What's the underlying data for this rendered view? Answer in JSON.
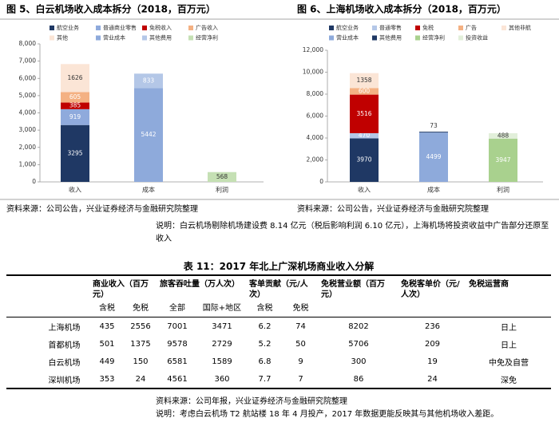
{
  "chart_data": [
    {
      "type": "stacked_bar",
      "title": "图 5、白云机场收入成本拆分（2018，百万元）",
      "categories": [
        "收入",
        "成本",
        "利润"
      ],
      "series": [
        {
          "name": "航空业务",
          "color": "#1f3864",
          "values": [
            3295,
            null,
            null
          ]
        },
        {
          "name": "普通商业零售",
          "color": "#8faadc",
          "values": [
            919,
            null,
            null
          ]
        },
        {
          "name": "免税收入",
          "color": "#c00000",
          "values": [
            385,
            null,
            null
          ]
        },
        {
          "name": "广告收入",
          "color": "#f4b183",
          "values": [
            605,
            null,
            null
          ]
        },
        {
          "name": "其他",
          "color": "#fbe5d6",
          "values": [
            1626,
            null,
            null
          ]
        },
        {
          "name": "营业成本",
          "color": "#8eaadb",
          "values": [
            null,
            5442,
            null
          ]
        },
        {
          "name": "其他费用",
          "color": "#b4c7e7",
          "values": [
            null,
            833,
            null
          ]
        },
        {
          "name": "经营净利",
          "color": "#c5e0b4",
          "values": [
            null,
            null,
            568
          ]
        }
      ],
      "ylim": [
        0,
        8000
      ],
      "yticks": [
        0,
        {
          "value": 1000,
          "label": "1,000"
        },
        {
          "value": 2000,
          "label": "2,000"
        },
        {
          "value": 3000,
          "label": "3,000"
        },
        {
          "value": 4000,
          "label": "4,000"
        },
        {
          "value": 5000,
          "label": "5,000"
        },
        {
          "value": 6000,
          "label": "6,000"
        },
        {
          "value": 7000,
          "label": "7,000"
        },
        {
          "value": 8000,
          "label": "8,000"
        }
      ],
      "source": "资料来源：公司公告，兴业证券经济与金融研究院整理"
    },
    {
      "type": "stacked_bar",
      "title": "图 6、上海机场收入成本拆分（2018，百万元）",
      "categories": [
        "收入",
        "成本",
        "利润"
      ],
      "series": [
        {
          "name": "航空业务",
          "color": "#1f3864",
          "values": [
            3970,
            null,
            null
          ]
        },
        {
          "name": "普通零售",
          "color": "#b4c7e7",
          "values": [
            470,
            null,
            null
          ]
        },
        {
          "name": "免税",
          "color": "#c00000",
          "values": [
            3516,
            null,
            null
          ]
        },
        {
          "name": "广告",
          "color": "#f4b183",
          "values": [
            600,
            null,
            null
          ]
        },
        {
          "name": "其他非航",
          "color": "#fbe5d6",
          "values": [
            1358,
            null,
            null
          ]
        },
        {
          "name": "营业成本",
          "color": "#8eaadb",
          "values": [
            null,
            4499,
            null
          ]
        },
        {
          "name": "其他费用",
          "color": "#1f3864",
          "values": [
            null,
            73,
            null
          ]
        },
        {
          "name": "经营净利",
          "color": "#a9d18e",
          "values": [
            null,
            null,
            3947
          ]
        },
        {
          "name": "投资收益",
          "color": "#e2efda",
          "values": [
            null,
            null,
            488
          ]
        }
      ],
      "ylim": [
        0,
        12000
      ],
      "yticks": [
        0,
        {
          "value": 2000,
          "label": "2,000"
        },
        {
          "value": 4000,
          "label": "4,000"
        },
        {
          "value": 6000,
          "label": "6,000"
        },
        {
          "value": 8000,
          "label": "8,000"
        },
        {
          "value": 10000,
          "label": "10,000"
        },
        {
          "value": 12000,
          "label": "12,000"
        }
      ],
      "source": "资料来源：公司公告，兴业证券经济与金融研究院整理"
    }
  ],
  "document": {
    "note": "说明：白云机场剔除机场建设费 8.14 亿元（税后影响利润 6.10 亿元），上海机场将投资收益中广告部分还原至收入",
    "table": {
      "title": "表 11：2017 年北上广深机场商业收入分解",
      "columns": [
        {
          "label": "商业收入（百万元）",
          "sub": [
            "含税",
            "免税"
          ]
        },
        {
          "label": "旅客吞吐量（万人次）",
          "sub": [
            "全部",
            "国际+地区"
          ]
        },
        {
          "label": "客单贡献（元/人次）",
          "sub": [
            "含税",
            "免税"
          ]
        },
        {
          "label": "免税营业额（百万元）"
        },
        {
          "label": "免税客单价（元/人次）"
        },
        {
          "label": "免税运营商"
        }
      ],
      "rows": [
        {
          "name": "上海机场",
          "cells": [
            435,
            2556,
            7001,
            3471,
            6.2,
            74,
            8202,
            236,
            "日上"
          ]
        },
        {
          "name": "首都机场",
          "cells": [
            501,
            1375,
            9578,
            2729,
            5.2,
            50,
            5706,
            209,
            "日上"
          ]
        },
        {
          "name": "白云机场",
          "cells": [
            449,
            150,
            6581,
            1589,
            6.8,
            9,
            300,
            19,
            "中免及自营"
          ]
        },
        {
          "name": "深圳机场",
          "cells": [
            353,
            24,
            4561,
            360,
            7.7,
            7,
            86,
            24,
            "深免"
          ]
        }
      ],
      "source": "资料来源：公司年报，兴业证券经济与金融研究院整理",
      "note": "说明：考虑白云机场 T2 航站楼 18 年 4 月投产，2017 年数据更能反映其与其他机场收入差距。"
    }
  }
}
